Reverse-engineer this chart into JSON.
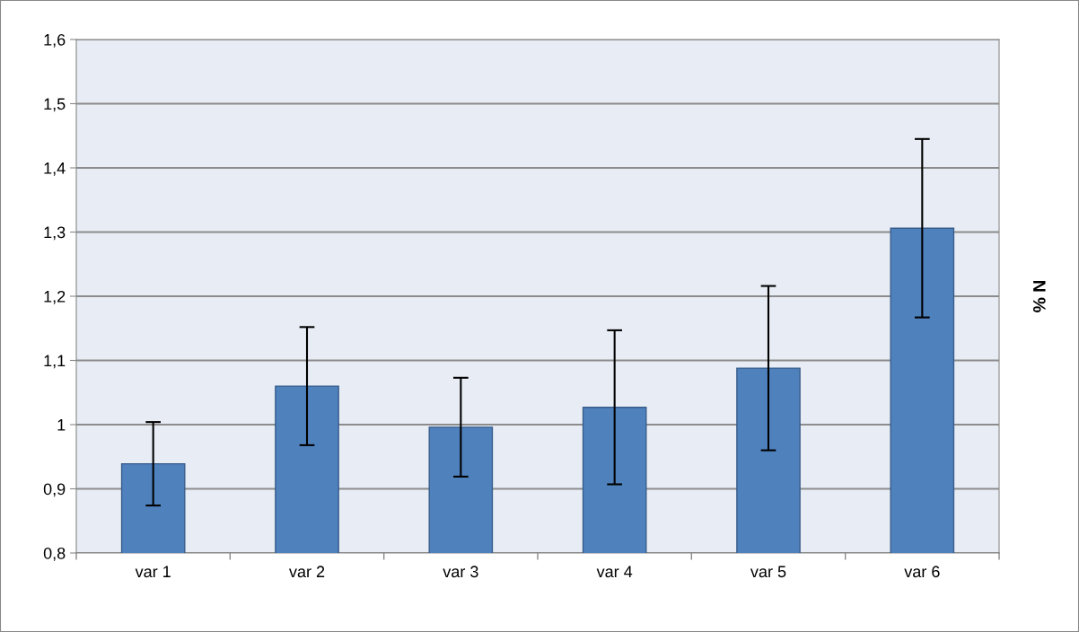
{
  "chart_data": {
    "type": "bar",
    "ylabel": "% N",
    "categories": [
      "var 1",
      "var 2",
      "var 3",
      "var 4",
      "var 5",
      "var 6"
    ],
    "values": [
      0.939,
      1.06,
      0.996,
      1.027,
      1.088,
      1.306
    ],
    "errors": [
      0.065,
      0.092,
      0.077,
      0.12,
      0.128,
      0.139
    ],
    "color": "#4f81bd",
    "ylim": [
      0.8,
      1.6
    ],
    "yticks": [
      {
        "value": 0.8,
        "label": "0,8"
      },
      {
        "value": 0.9,
        "label": "0,9"
      },
      {
        "value": 1,
        "label": "1"
      },
      {
        "value": 1.1,
        "label": "1,1"
      },
      {
        "value": 1.2,
        "label": "1,2"
      },
      {
        "value": 1.3,
        "label": "1,3"
      },
      {
        "value": 1.4,
        "label": "1,4"
      },
      {
        "value": 1.5,
        "label": "1,5"
      },
      {
        "value": 1.6,
        "label": "1,6"
      }
    ],
    "grid": "y"
  }
}
